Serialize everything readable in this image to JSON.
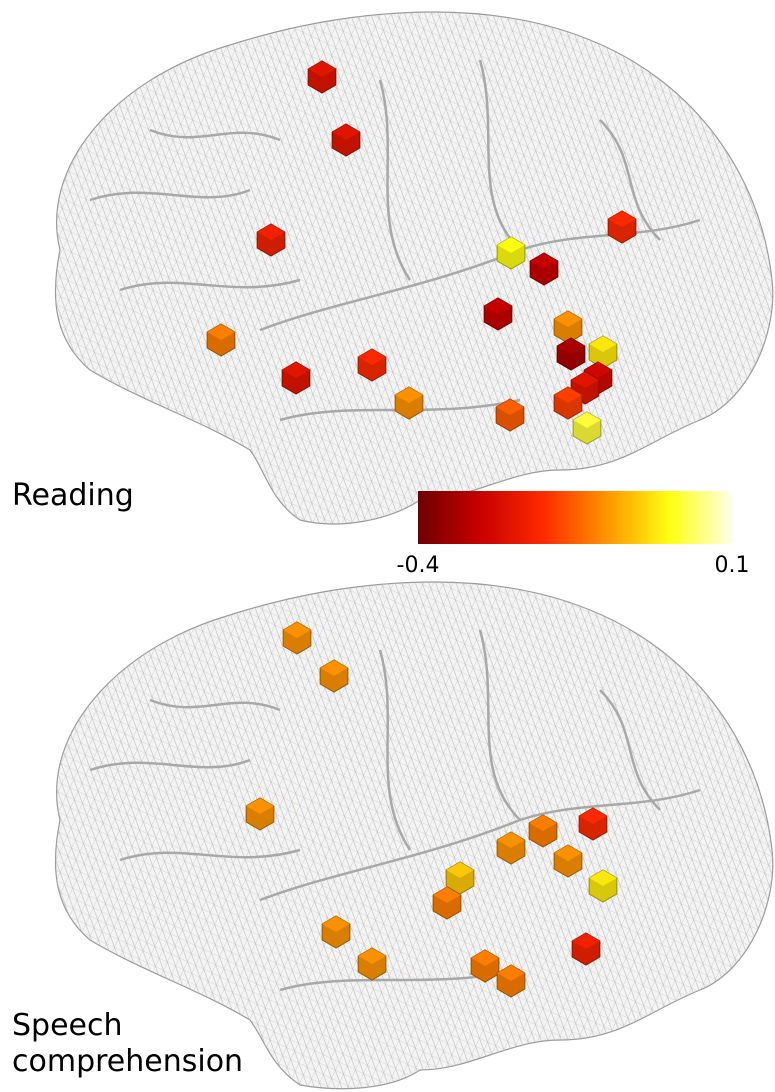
{
  "panels": [
    {
      "label": "Reading",
      "values": [
        -0.25,
        -0.25,
        -0.22,
        0.0,
        -0.3,
        -0.2,
        -0.3,
        -0.12,
        -0.1,
        -0.33,
        -0.02,
        -0.25,
        -0.2,
        -0.28,
        -0.25,
        -0.1,
        -0.15,
        -0.18,
        0.02
      ]
    },
    {
      "label": "Speech comprehension",
      "values": [
        -0.1,
        -0.1,
        -0.1,
        -0.2,
        -0.12,
        -0.1,
        -0.05,
        -0.1,
        -0.12,
        -0.02,
        -0.1,
        -0.22,
        -0.1,
        -0.12,
        -0.12
      ]
    }
  ],
  "colorbar": {
    "range": [
      -0.4,
      0.1
    ],
    "ticks": [
      -0.4,
      0.1
    ]
  }
}
